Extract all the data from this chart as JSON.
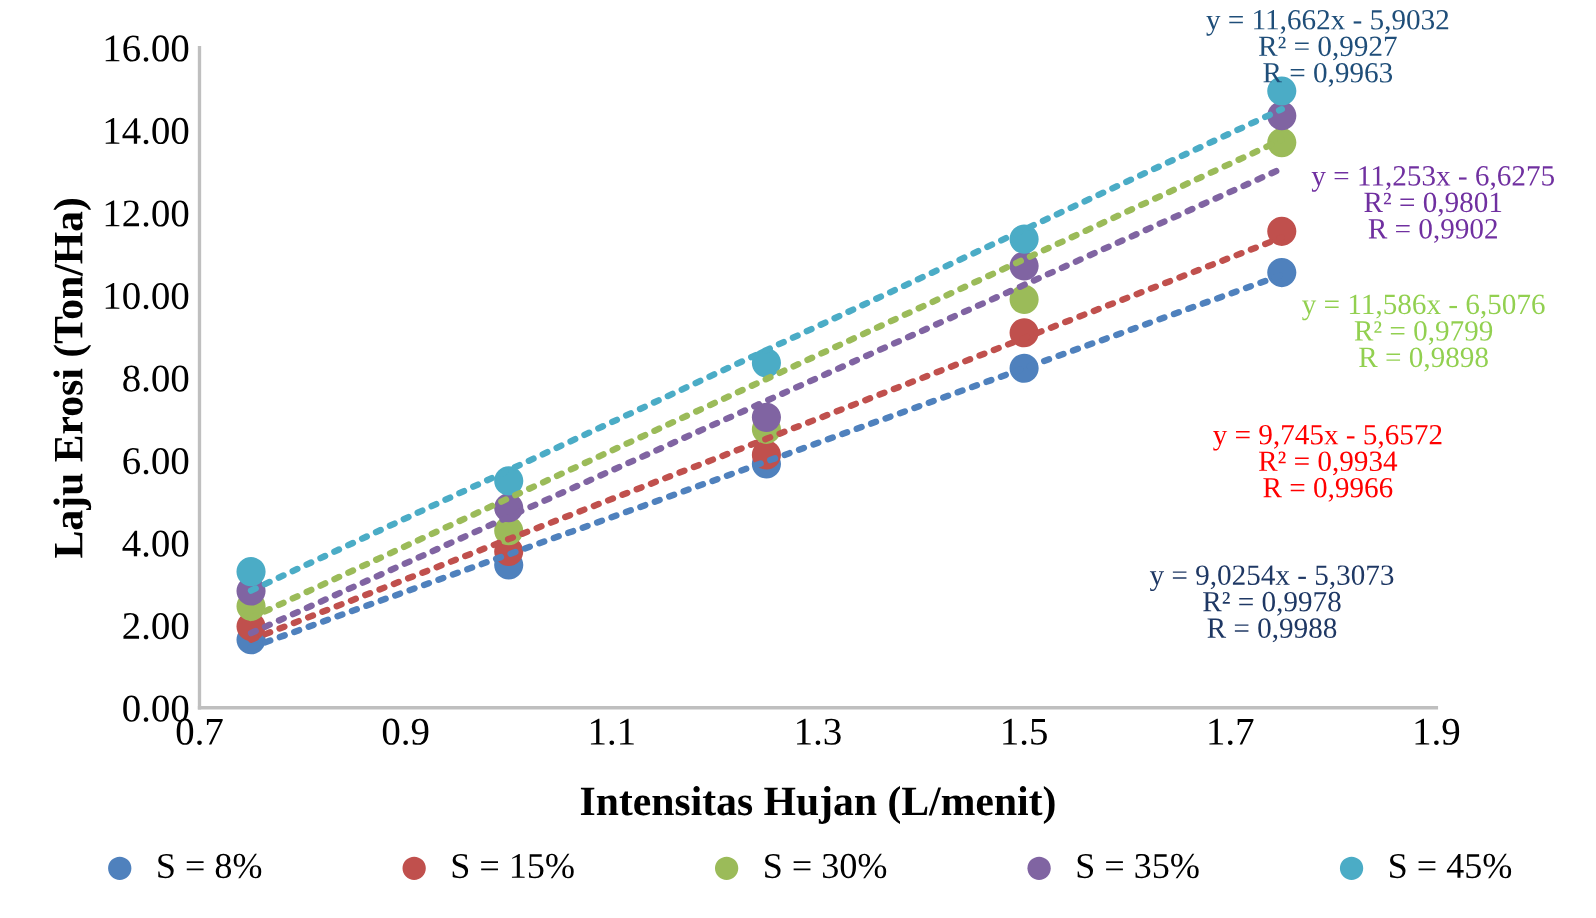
{
  "chart_data": {
    "type": "scatter",
    "xlabel": "Intensitas Hujan (L/menit)",
    "ylabel": "Laju Erosi (Ton/Ha)",
    "x": [
      0.75,
      1.0,
      1.25,
      1.5,
      1.75
    ],
    "series": [
      {
        "name": "S = 8%",
        "marker": "circle",
        "color": "#4f81bd",
        "values": [
          1.65,
          3.46,
          5.91,
          8.23,
          10.55
        ]
      },
      {
        "name": "S = 15%",
        "marker": "circle",
        "color": "#c0504d",
        "values": [
          1.97,
          3.79,
          6.13,
          9.09,
          11.55
        ]
      },
      {
        "name": "S = 30%",
        "marker": "circle",
        "color": "#9bbb59",
        "values": [
          2.46,
          4.29,
          6.75,
          9.9,
          13.7
        ]
      },
      {
        "name": "S = 35%",
        "marker": "circle",
        "color": "#8064a2",
        "values": [
          2.83,
          4.85,
          7.04,
          10.71,
          14.35
        ]
      },
      {
        "name": "S = 45%",
        "marker": "circle",
        "color": "#4bacc6",
        "values": [
          3.3,
          5.5,
          8.36,
          11.36,
          14.95
        ]
      },
      {
        "type": "line",
        "color": "#4f81bd",
        "values": [
          1.46,
          3.72,
          5.97,
          8.23,
          10.49
        ],
        "line_style": "dotted"
      },
      {
        "type": "line",
        "color": "#c0504d",
        "values": [
          1.65,
          4.09,
          6.52,
          8.96,
          11.4
        ],
        "line_style": "dotted"
      },
      {
        "type": "line",
        "color": "#9bbb59",
        "values": [
          2.18,
          5.08,
          7.97,
          10.87,
          13.77
        ],
        "line_style": "dotted"
      },
      {
        "type": "line",
        "color": "#8064a2",
        "values": [
          1.81,
          4.63,
          7.44,
          10.25,
          13.07
        ],
        "line_style": "dotted"
      },
      {
        "type": "line",
        "color": "#4bacc6",
        "values": [
          2.84,
          5.76,
          8.67,
          11.59,
          14.51
        ],
        "line_style": "dotted"
      }
    ],
    "annotations": [
      "y = 11,662x - 5,9032\nR² = 0,9927\nR = 0,9963",
      "y = 11,253x - 6,6275\nR² = 0,9801\nR = 0,9902",
      "y = 11,586x - 6,5076\nR² = 0,9799\nR = 0,9898",
      "y = 9,745x - 5,6572\nR² = 0,9934\nR = 0,9966",
      "y = 9,0254x - 5,3073\nR² = 0,9978\nR = 0,9988"
    ],
    "xlim": [
      0.7,
      1.9
    ],
    "xticks": [
      0.7,
      0.9,
      1.1,
      1.3,
      1.5,
      1.7,
      1.9
    ],
    "ylim": [
      0,
      16
    ],
    "yticks": [
      {
        "value": 0,
        "label": "0.00"
      },
      {
        "value": 2,
        "label": "2.00"
      },
      {
        "value": 4,
        "label": "4.00"
      },
      {
        "value": 6,
        "label": "6.00"
      },
      {
        "value": 8,
        "label": "8.00"
      },
      {
        "value": 10,
        "label": "10.00"
      },
      {
        "value": 12,
        "label": "12.00"
      },
      {
        "value": 14,
        "label": "14.00"
      },
      {
        "value": 16,
        "label": "16.00"
      }
    ],
    "grid": false,
    "legend": "bottom"
  }
}
